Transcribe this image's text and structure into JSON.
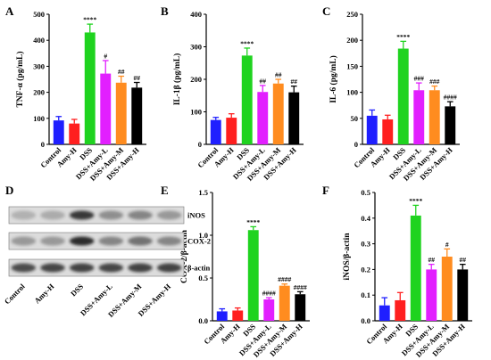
{
  "colors": {
    "Control": "#1f1fff",
    "Amy-H": "#ff1f1f",
    "DSS": "#1fd31f",
    "DSS+Amy-L": "#e21fff",
    "DSS+Amy-M": "#ff8c1f",
    "DSS+Amy-H": "#000000"
  },
  "chart_data": [
    {
      "id": "A",
      "type": "bar",
      "ylabel": "TNF-α (pg/mL)",
      "ylim": [
        0,
        500
      ],
      "yticks": [
        0,
        100,
        200,
        300,
        400,
        500
      ],
      "categories": [
        "Control",
        "Amy-H",
        "DSS",
        "DSS+Amy-L",
        "DSS+Amy-M",
        "DSS+Amy-H"
      ],
      "values": [
        92,
        80,
        430,
        272,
        237,
        218
      ],
      "errors": [
        15,
        16,
        32,
        50,
        25,
        20
      ],
      "significance": [
        "",
        "",
        "****",
        "#",
        "##",
        "##"
      ]
    },
    {
      "id": "B",
      "type": "bar",
      "ylabel": "IL-1β (pg/mL)",
      "ylim": [
        0,
        400
      ],
      "yticks": [
        0,
        100,
        200,
        300,
        400
      ],
      "categories": [
        "Control",
        "Amy-H",
        "DSS",
        "DSS+Amy-L",
        "DSS+Amy-M",
        "DSS+Amy-H"
      ],
      "values": [
        75,
        82,
        273,
        161,
        187,
        160
      ],
      "errors": [
        8,
        12,
        23,
        20,
        13,
        19
      ],
      "significance": [
        "",
        "",
        "****",
        "##",
        "##",
        "##"
      ]
    },
    {
      "id": "C",
      "type": "bar",
      "ylabel": "IL-6 (pg/mL)",
      "ylim": [
        0,
        250
      ],
      "yticks": [
        0,
        50,
        100,
        150,
        200,
        250
      ],
      "categories": [
        "Control",
        "Amy-H",
        "DSS",
        "DSS+Amy-L",
        "DSS+Amy-M",
        "DSS+Amy-H"
      ],
      "values": [
        55,
        48,
        184,
        104,
        104,
        73
      ],
      "errors": [
        11,
        8,
        14,
        14,
        8,
        9
      ],
      "significance": [
        "",
        "",
        "****",
        "###",
        "###",
        "####"
      ]
    },
    {
      "id": "E",
      "type": "bar",
      "ylabel": "COX-2/β-actin",
      "ylim": [
        0,
        1.5
      ],
      "yticks": [
        0.0,
        0.5,
        1.0,
        1.5
      ],
      "categories": [
        "Control",
        "Amy-H",
        "DSS",
        "DSS+Amy-L",
        "DSS+Amy-M",
        "DSS+Amy-H"
      ],
      "values": [
        0.11,
        0.12,
        1.06,
        0.25,
        0.41,
        0.31
      ],
      "errors": [
        0.03,
        0.03,
        0.04,
        0.02,
        0.02,
        0.03
      ],
      "significance": [
        "",
        "",
        "****",
        "####",
        "####",
        "####"
      ]
    },
    {
      "id": "F",
      "type": "bar",
      "ylabel": "iNOS/β-actin",
      "ylim": [
        0,
        0.5
      ],
      "yticks": [
        0.0,
        0.1,
        0.2,
        0.3,
        0.4,
        0.5
      ],
      "categories": [
        "Control",
        "Amy-H",
        "DSS",
        "DSS+Amy-L",
        "DSS+Amy-M",
        "DSS+Amy-H"
      ],
      "values": [
        0.06,
        0.08,
        0.41,
        0.2,
        0.25,
        0.2
      ],
      "errors": [
        0.03,
        0.03,
        0.04,
        0.02,
        0.03,
        0.02
      ],
      "significance": [
        "",
        "",
        "****",
        "##",
        "#",
        "##"
      ]
    }
  ],
  "western_blot": {
    "id": "D",
    "bands": [
      "iNOS",
      "COX-2",
      "β-actin"
    ],
    "lanes": [
      "Control",
      "Amy-H",
      "DSS",
      "DSS+Amy-L",
      "DSS+Amy-M",
      "DSS+Amy-H"
    ]
  }
}
